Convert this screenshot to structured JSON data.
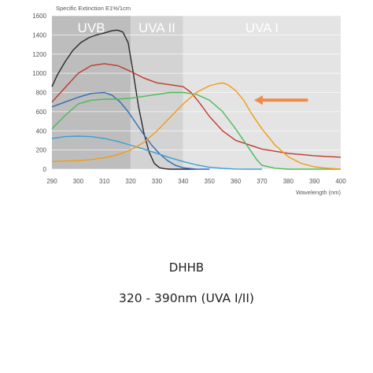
{
  "caption": {
    "name": "DHHB",
    "range": "320 - 390nm (UVA I/II)"
  },
  "chart_data": {
    "type": "line",
    "ylabel": "Specific Extinction E1%/1cm",
    "xlabel": "Wavelength (nm)",
    "xlim": [
      290,
      400
    ],
    "ylim": [
      0,
      1600
    ],
    "x_ticks": [
      290,
      300,
      310,
      320,
      330,
      340,
      350,
      360,
      370,
      380,
      390,
      400
    ],
    "y_ticks": [
      0,
      200,
      400,
      600,
      800,
      1000,
      1200,
      1400,
      1600
    ],
    "grid": "horizontal",
    "legend": "none",
    "bands": [
      {
        "label": "UVB",
        "from": 290,
        "to": 320,
        "color": "#bdbdbd"
      },
      {
        "label": "UVA II",
        "from": 320,
        "to": 340,
        "color": "#d3d3d3"
      },
      {
        "label": "UVA I",
        "from": 340,
        "to": 400,
        "color": "#e4e4e4"
      }
    ],
    "arrow": {
      "color": "#f08a4b",
      "from_x": 387,
      "to_x": 367,
      "y": 720
    },
    "series": [
      {
        "color": "#2b2b2b",
        "x": [
          290,
          292,
          295,
          298,
          301,
          304,
          307,
          310,
          313,
          315,
          317,
          319,
          321,
          323,
          325,
          327,
          329,
          331,
          333,
          335,
          340,
          345
        ],
        "y": [
          860,
          980,
          1120,
          1240,
          1320,
          1370,
          1400,
          1420,
          1445,
          1450,
          1430,
          1320,
          1000,
          650,
          380,
          180,
          60,
          15,
          5,
          0,
          0,
          0
        ]
      },
      {
        "color": "#c0392b",
        "x": [
          290,
          295,
          300,
          305,
          310,
          315,
          320,
          325,
          330,
          335,
          340,
          343,
          346,
          350,
          355,
          360,
          370,
          380,
          390,
          400
        ],
        "y": [
          700,
          850,
          1000,
          1080,
          1100,
          1080,
          1020,
          950,
          900,
          880,
          860,
          800,
          700,
          550,
          400,
          300,
          210,
          165,
          140,
          125
        ]
      },
      {
        "color": "#2e6db5",
        "x": [
          290,
          295,
          300,
          305,
          310,
          313,
          316,
          319,
          322,
          325,
          328,
          331,
          334,
          337,
          340,
          345,
          350
        ],
        "y": [
          650,
          700,
          750,
          790,
          800,
          770,
          700,
          600,
          480,
          360,
          250,
          160,
          90,
          40,
          15,
          0,
          0
        ]
      },
      {
        "color": "#4cbb57",
        "x": [
          290,
          295,
          300,
          305,
          310,
          315,
          320,
          325,
          330,
          335,
          340,
          345,
          350,
          355,
          360,
          365,
          368,
          370,
          375,
          380,
          390,
          400
        ],
        "y": [
          420,
          560,
          680,
          720,
          730,
          730,
          740,
          760,
          780,
          800,
          800,
          780,
          720,
          600,
          420,
          220,
          100,
          40,
          10,
          0,
          0,
          0
        ]
      },
      {
        "color": "#3a9fd8",
        "x": [
          290,
          295,
          300,
          305,
          310,
          315,
          320,
          325,
          330,
          335,
          340,
          345,
          350,
          355,
          360,
          365,
          370
        ],
        "y": [
          320,
          340,
          345,
          340,
          320,
          290,
          250,
          210,
          165,
          120,
          80,
          45,
          20,
          8,
          2,
          0,
          0
        ]
      },
      {
        "color": "#f39c12",
        "x": [
          290,
          295,
          300,
          305,
          310,
          315,
          320,
          325,
          330,
          335,
          340,
          345,
          350,
          353,
          355,
          357,
          360,
          363,
          366,
          370,
          375,
          380,
          385,
          390,
          395,
          400
        ],
        "y": [
          80,
          85,
          90,
          100,
          120,
          150,
          200,
          280,
          400,
          540,
          680,
          800,
          870,
          890,
          900,
          880,
          820,
          720,
          580,
          420,
          250,
          130,
          60,
          25,
          10,
          0
        ]
      }
    ]
  }
}
